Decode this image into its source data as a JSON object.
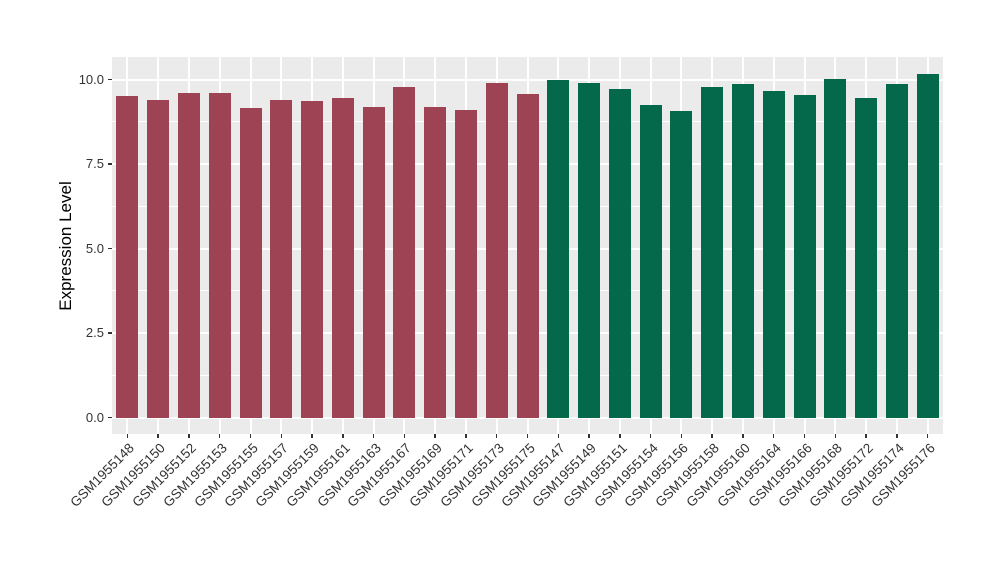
{
  "chart_data": {
    "type": "bar",
    "title": "",
    "xlabel": "",
    "ylabel": "Expression Level",
    "ylim": [
      -0.5,
      10.68
    ],
    "yticks": [
      0.0,
      2.5,
      5.0,
      7.5,
      10.0
    ],
    "ytick_labels": [
      "0.0",
      "2.5",
      "5.0",
      "7.5",
      "10.0"
    ],
    "y_minor_gridlines": [
      1.25,
      3.75,
      6.25,
      8.75
    ],
    "grid": "white major and minor gridlines on grey panel",
    "legend_position": "none",
    "panel_bg": "#EBEBEB",
    "grid_color": "#FFFFFF",
    "axis_text_color": "#333333",
    "groups": [
      {
        "name": "maroon-group",
        "color": "#9E4353"
      },
      {
        "name": "green-group",
        "color": "#04684B"
      }
    ],
    "categories": [
      "GSM1955148",
      "GSM1955150",
      "GSM1955152",
      "GSM1955153",
      "GSM1955155",
      "GSM1955157",
      "GSM1955159",
      "GSM1955161",
      "GSM1955163",
      "GSM1955167",
      "GSM1955169",
      "GSM1955171",
      "GSM1955173",
      "GSM1955175",
      "GSM1955147",
      "GSM1955149",
      "GSM1955151",
      "GSM1955154",
      "GSM1955156",
      "GSM1955158",
      "GSM1955160",
      "GSM1955164",
      "GSM1955166",
      "GSM1955168",
      "GSM1955172",
      "GSM1955174",
      "GSM1955176"
    ],
    "bars": [
      {
        "label": "GSM1955148",
        "value": 9.52,
        "group": 0
      },
      {
        "label": "GSM1955150",
        "value": 9.4,
        "group": 0
      },
      {
        "label": "GSM1955152",
        "value": 9.62,
        "group": 0
      },
      {
        "label": "GSM1955153",
        "value": 9.62,
        "group": 0
      },
      {
        "label": "GSM1955155",
        "value": 9.17,
        "group": 0
      },
      {
        "label": "GSM1955157",
        "value": 9.39,
        "group": 0
      },
      {
        "label": "GSM1955159",
        "value": 9.37,
        "group": 0
      },
      {
        "label": "GSM1955161",
        "value": 9.47,
        "group": 0
      },
      {
        "label": "GSM1955163",
        "value": 9.2,
        "group": 0
      },
      {
        "label": "GSM1955167",
        "value": 9.79,
        "group": 0
      },
      {
        "label": "GSM1955169",
        "value": 9.2,
        "group": 0
      },
      {
        "label": "GSM1955171",
        "value": 9.11,
        "group": 0
      },
      {
        "label": "GSM1955173",
        "value": 9.89,
        "group": 0
      },
      {
        "label": "GSM1955175",
        "value": 9.58,
        "group": 0
      },
      {
        "label": "GSM1955147",
        "value": 9.98,
        "group": 1
      },
      {
        "label": "GSM1955149",
        "value": 9.9,
        "group": 1
      },
      {
        "label": "GSM1955151",
        "value": 9.73,
        "group": 1
      },
      {
        "label": "GSM1955154",
        "value": 9.26,
        "group": 1
      },
      {
        "label": "GSM1955156",
        "value": 9.08,
        "group": 1
      },
      {
        "label": "GSM1955158",
        "value": 9.79,
        "group": 1
      },
      {
        "label": "GSM1955160",
        "value": 9.88,
        "group": 1
      },
      {
        "label": "GSM1955164",
        "value": 9.66,
        "group": 1
      },
      {
        "label": "GSM1955166",
        "value": 9.55,
        "group": 1
      },
      {
        "label": "GSM1955168",
        "value": 10.02,
        "group": 1
      },
      {
        "label": "GSM1955172",
        "value": 9.47,
        "group": 1
      },
      {
        "label": "GSM1955174",
        "value": 9.87,
        "group": 1
      },
      {
        "label": "GSM1955176",
        "value": 10.16,
        "group": 1
      }
    ]
  }
}
